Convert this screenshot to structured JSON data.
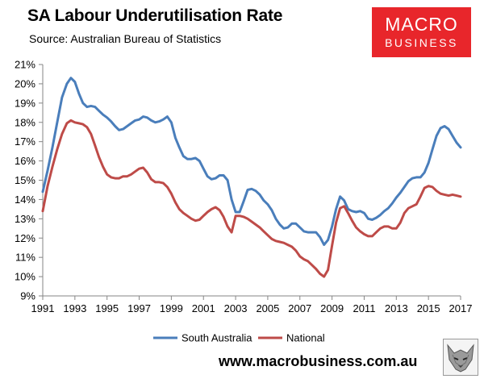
{
  "header": {
    "title": "SA Labour Underutilisation Rate",
    "source": "Source: Australian Bureau of Statistics"
  },
  "logo": {
    "line1": "MACRO",
    "line2": "BUSINESS",
    "color": "#e8262b"
  },
  "footer": {
    "url": "www.macrobusiness.com.au"
  },
  "chart_data": {
    "type": "line",
    "title": "SA Labour Underutilisation Rate",
    "xlabel": "",
    "ylabel": "",
    "xlim": [
      1991,
      2017
    ],
    "ylim": [
      9,
      21
    ],
    "x_ticks": [
      1991,
      1993,
      1995,
      1997,
      1999,
      2001,
      2003,
      2005,
      2007,
      2009,
      2011,
      2013,
      2015,
      2017
    ],
    "y_ticks": [
      9,
      10,
      11,
      12,
      13,
      14,
      15,
      16,
      17,
      18,
      19,
      20,
      21
    ],
    "y_tick_suffix": "%",
    "grid": false,
    "legend_position": "bottom",
    "series": [
      {
        "name": "South Australia",
        "color": "#4a7ebb",
        "points": [
          [
            1991.0,
            14.4
          ],
          [
            1991.3,
            15.5
          ],
          [
            1991.6,
            16.7
          ],
          [
            1991.9,
            18.0
          ],
          [
            1992.2,
            19.3
          ],
          [
            1992.5,
            20.0
          ],
          [
            1992.75,
            20.3
          ],
          [
            1993.0,
            20.1
          ],
          [
            1993.25,
            19.5
          ],
          [
            1993.5,
            19.0
          ],
          [
            1993.75,
            18.8
          ],
          [
            1994.0,
            18.85
          ],
          [
            1994.25,
            18.8
          ],
          [
            1994.5,
            18.6
          ],
          [
            1994.75,
            18.4
          ],
          [
            1995.0,
            18.25
          ],
          [
            1995.25,
            18.05
          ],
          [
            1995.5,
            17.8
          ],
          [
            1995.75,
            17.6
          ],
          [
            1996.0,
            17.65
          ],
          [
            1996.25,
            17.8
          ],
          [
            1996.5,
            17.95
          ],
          [
            1996.75,
            18.1
          ],
          [
            1997.0,
            18.15
          ],
          [
            1997.25,
            18.3
          ],
          [
            1997.5,
            18.25
          ],
          [
            1997.75,
            18.1
          ],
          [
            1998.0,
            18.0
          ],
          [
            1998.25,
            18.05
          ],
          [
            1998.5,
            18.15
          ],
          [
            1998.75,
            18.3
          ],
          [
            1999.0,
            18.0
          ],
          [
            1999.25,
            17.2
          ],
          [
            1999.5,
            16.7
          ],
          [
            1999.75,
            16.25
          ],
          [
            2000.0,
            16.1
          ],
          [
            2000.25,
            16.1
          ],
          [
            2000.5,
            16.15
          ],
          [
            2000.75,
            16.0
          ],
          [
            2001.0,
            15.6
          ],
          [
            2001.25,
            15.2
          ],
          [
            2001.5,
            15.05
          ],
          [
            2001.75,
            15.1
          ],
          [
            2002.0,
            15.25
          ],
          [
            2002.25,
            15.25
          ],
          [
            2002.5,
            15.0
          ],
          [
            2002.75,
            14.0
          ],
          [
            2003.0,
            13.35
          ],
          [
            2003.25,
            13.35
          ],
          [
            2003.5,
            13.9
          ],
          [
            2003.75,
            14.5
          ],
          [
            2004.0,
            14.55
          ],
          [
            2004.25,
            14.45
          ],
          [
            2004.5,
            14.25
          ],
          [
            2004.75,
            13.95
          ],
          [
            2005.0,
            13.75
          ],
          [
            2005.25,
            13.45
          ],
          [
            2005.5,
            13.0
          ],
          [
            2005.75,
            12.7
          ],
          [
            2006.0,
            12.5
          ],
          [
            2006.25,
            12.55
          ],
          [
            2006.5,
            12.75
          ],
          [
            2006.75,
            12.75
          ],
          [
            2007.0,
            12.55
          ],
          [
            2007.25,
            12.35
          ],
          [
            2007.5,
            12.3
          ],
          [
            2007.75,
            12.3
          ],
          [
            2008.0,
            12.3
          ],
          [
            2008.25,
            12.05
          ],
          [
            2008.5,
            11.65
          ],
          [
            2008.75,
            11.9
          ],
          [
            2009.0,
            12.6
          ],
          [
            2009.25,
            13.5
          ],
          [
            2009.5,
            14.15
          ],
          [
            2009.75,
            13.95
          ],
          [
            2010.0,
            13.5
          ],
          [
            2010.25,
            13.4
          ],
          [
            2010.5,
            13.35
          ],
          [
            2010.75,
            13.4
          ],
          [
            2011.0,
            13.3
          ],
          [
            2011.25,
            13.0
          ],
          [
            2011.5,
            12.95
          ],
          [
            2011.75,
            13.05
          ],
          [
            2012.0,
            13.2
          ],
          [
            2012.25,
            13.4
          ],
          [
            2012.5,
            13.55
          ],
          [
            2012.75,
            13.8
          ],
          [
            2013.0,
            14.1
          ],
          [
            2013.25,
            14.35
          ],
          [
            2013.5,
            14.65
          ],
          [
            2013.75,
            14.95
          ],
          [
            2014.0,
            15.1
          ],
          [
            2014.25,
            15.15
          ],
          [
            2014.5,
            15.15
          ],
          [
            2014.75,
            15.4
          ],
          [
            2015.0,
            15.9
          ],
          [
            2015.25,
            16.6
          ],
          [
            2015.5,
            17.3
          ],
          [
            2015.75,
            17.7
          ],
          [
            2016.0,
            17.8
          ],
          [
            2016.25,
            17.65
          ],
          [
            2016.5,
            17.3
          ],
          [
            2016.75,
            16.95
          ],
          [
            2017.0,
            16.7
          ]
        ]
      },
      {
        "name": "National",
        "color": "#be4b48",
        "points": [
          [
            1991.0,
            13.4
          ],
          [
            1991.3,
            14.7
          ],
          [
            1991.6,
            15.7
          ],
          [
            1991.9,
            16.6
          ],
          [
            1992.2,
            17.4
          ],
          [
            1992.5,
            17.95
          ],
          [
            1992.75,
            18.1
          ],
          [
            1993.0,
            18.0
          ],
          [
            1993.25,
            17.95
          ],
          [
            1993.5,
            17.9
          ],
          [
            1993.75,
            17.75
          ],
          [
            1994.0,
            17.4
          ],
          [
            1994.25,
            16.8
          ],
          [
            1994.5,
            16.2
          ],
          [
            1994.75,
            15.7
          ],
          [
            1995.0,
            15.3
          ],
          [
            1995.25,
            15.15
          ],
          [
            1995.5,
            15.1
          ],
          [
            1995.75,
            15.1
          ],
          [
            1996.0,
            15.2
          ],
          [
            1996.25,
            15.2
          ],
          [
            1996.5,
            15.3
          ],
          [
            1996.75,
            15.45
          ],
          [
            1997.0,
            15.6
          ],
          [
            1997.25,
            15.65
          ],
          [
            1997.5,
            15.4
          ],
          [
            1997.75,
            15.05
          ],
          [
            1998.0,
            14.9
          ],
          [
            1998.25,
            14.9
          ],
          [
            1998.5,
            14.85
          ],
          [
            1998.75,
            14.65
          ],
          [
            1999.0,
            14.3
          ],
          [
            1999.25,
            13.85
          ],
          [
            1999.5,
            13.5
          ],
          [
            1999.75,
            13.3
          ],
          [
            2000.0,
            13.15
          ],
          [
            2000.25,
            13.0
          ],
          [
            2000.5,
            12.9
          ],
          [
            2000.75,
            12.95
          ],
          [
            2001.0,
            13.15
          ],
          [
            2001.25,
            13.35
          ],
          [
            2001.5,
            13.5
          ],
          [
            2001.75,
            13.6
          ],
          [
            2002.0,
            13.45
          ],
          [
            2002.25,
            13.1
          ],
          [
            2002.5,
            12.6
          ],
          [
            2002.75,
            12.3
          ],
          [
            2003.0,
            13.15
          ],
          [
            2003.25,
            13.15
          ],
          [
            2003.5,
            13.1
          ],
          [
            2003.75,
            13.0
          ],
          [
            2004.0,
            12.85
          ],
          [
            2004.25,
            12.7
          ],
          [
            2004.5,
            12.55
          ],
          [
            2004.75,
            12.35
          ],
          [
            2005.0,
            12.15
          ],
          [
            2005.25,
            11.95
          ],
          [
            2005.5,
            11.85
          ],
          [
            2005.75,
            11.8
          ],
          [
            2006.0,
            11.75
          ],
          [
            2006.25,
            11.65
          ],
          [
            2006.5,
            11.55
          ],
          [
            2006.75,
            11.35
          ],
          [
            2007.0,
            11.05
          ],
          [
            2007.25,
            10.9
          ],
          [
            2007.5,
            10.8
          ],
          [
            2007.75,
            10.6
          ],
          [
            2008.0,
            10.4
          ],
          [
            2008.25,
            10.15
          ],
          [
            2008.5,
            10.0
          ],
          [
            2008.75,
            10.35
          ],
          [
            2009.0,
            11.6
          ],
          [
            2009.25,
            12.8
          ],
          [
            2009.5,
            13.55
          ],
          [
            2009.75,
            13.65
          ],
          [
            2010.0,
            13.3
          ],
          [
            2010.25,
            12.9
          ],
          [
            2010.5,
            12.55
          ],
          [
            2010.75,
            12.35
          ],
          [
            2011.0,
            12.2
          ],
          [
            2011.25,
            12.1
          ],
          [
            2011.5,
            12.1
          ],
          [
            2011.75,
            12.3
          ],
          [
            2012.0,
            12.5
          ],
          [
            2012.25,
            12.6
          ],
          [
            2012.5,
            12.6
          ],
          [
            2012.75,
            12.5
          ],
          [
            2013.0,
            12.5
          ],
          [
            2013.25,
            12.8
          ],
          [
            2013.5,
            13.3
          ],
          [
            2013.75,
            13.55
          ],
          [
            2014.0,
            13.65
          ],
          [
            2014.25,
            13.75
          ],
          [
            2014.5,
            14.15
          ],
          [
            2014.75,
            14.6
          ],
          [
            2015.0,
            14.7
          ],
          [
            2015.25,
            14.65
          ],
          [
            2015.5,
            14.45
          ],
          [
            2015.75,
            14.3
          ],
          [
            2016.0,
            14.25
          ],
          [
            2016.25,
            14.2
          ],
          [
            2016.5,
            14.25
          ],
          [
            2016.75,
            14.2
          ],
          [
            2017.0,
            14.15
          ]
        ]
      }
    ]
  }
}
